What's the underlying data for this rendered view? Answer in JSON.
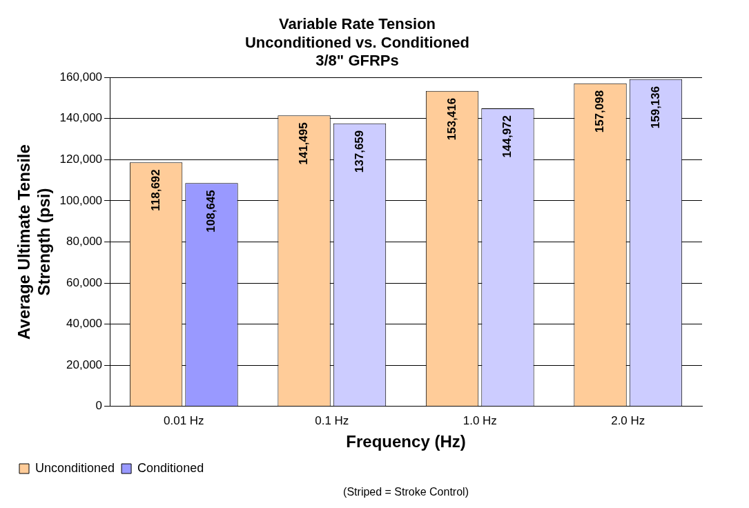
{
  "chart_data": {
    "type": "bar",
    "title": "Variable Rate Tension\nUnconditioned vs. Conditioned\n3/8\" GFRPs",
    "xlabel": "Frequency (Hz)",
    "ylabel": "Average Ultimate Tensile\nStrength (psi)",
    "categories": [
      "0.01 Hz",
      "0.1 Hz",
      "1.0 Hz",
      "2.0 Hz"
    ],
    "series": [
      {
        "name": "Unconditioned",
        "color": "#ffcc99",
        "values": [
          118692,
          141495,
          153416,
          157098
        ],
        "value_labels": [
          "118,692",
          "141,495",
          "153,416",
          "157,098"
        ]
      },
      {
        "name": "Conditioned",
        "color": "#9999ff",
        "colors": [
          "#9999ff",
          "#ccccff",
          "#ccccff",
          "#ccccff"
        ],
        "values": [
          108645,
          137659,
          144972,
          159136
        ],
        "value_labels": [
          "108,645",
          "137,659",
          "144,972",
          "159,136"
        ]
      }
    ],
    "ylim": [
      0,
      160000
    ],
    "yticks": [
      0,
      {
        "value": 20000,
        "label": "20,000"
      },
      {
        "value": 40000,
        "label": "40,000"
      },
      {
        "value": 60000,
        "label": "60,000"
      },
      {
        "value": 80000,
        "label": "80,000"
      },
      {
        "value": 100000,
        "label": "100,000"
      },
      {
        "value": 120000,
        "label": "120,000"
      },
      {
        "value": 140000,
        "label": "140,000"
      },
      {
        "value": 160000,
        "label": "160,000"
      }
    ],
    "grid": "y",
    "legend": "bottom left",
    "annotations": [
      "(Striped = Stroke Control)"
    ]
  }
}
